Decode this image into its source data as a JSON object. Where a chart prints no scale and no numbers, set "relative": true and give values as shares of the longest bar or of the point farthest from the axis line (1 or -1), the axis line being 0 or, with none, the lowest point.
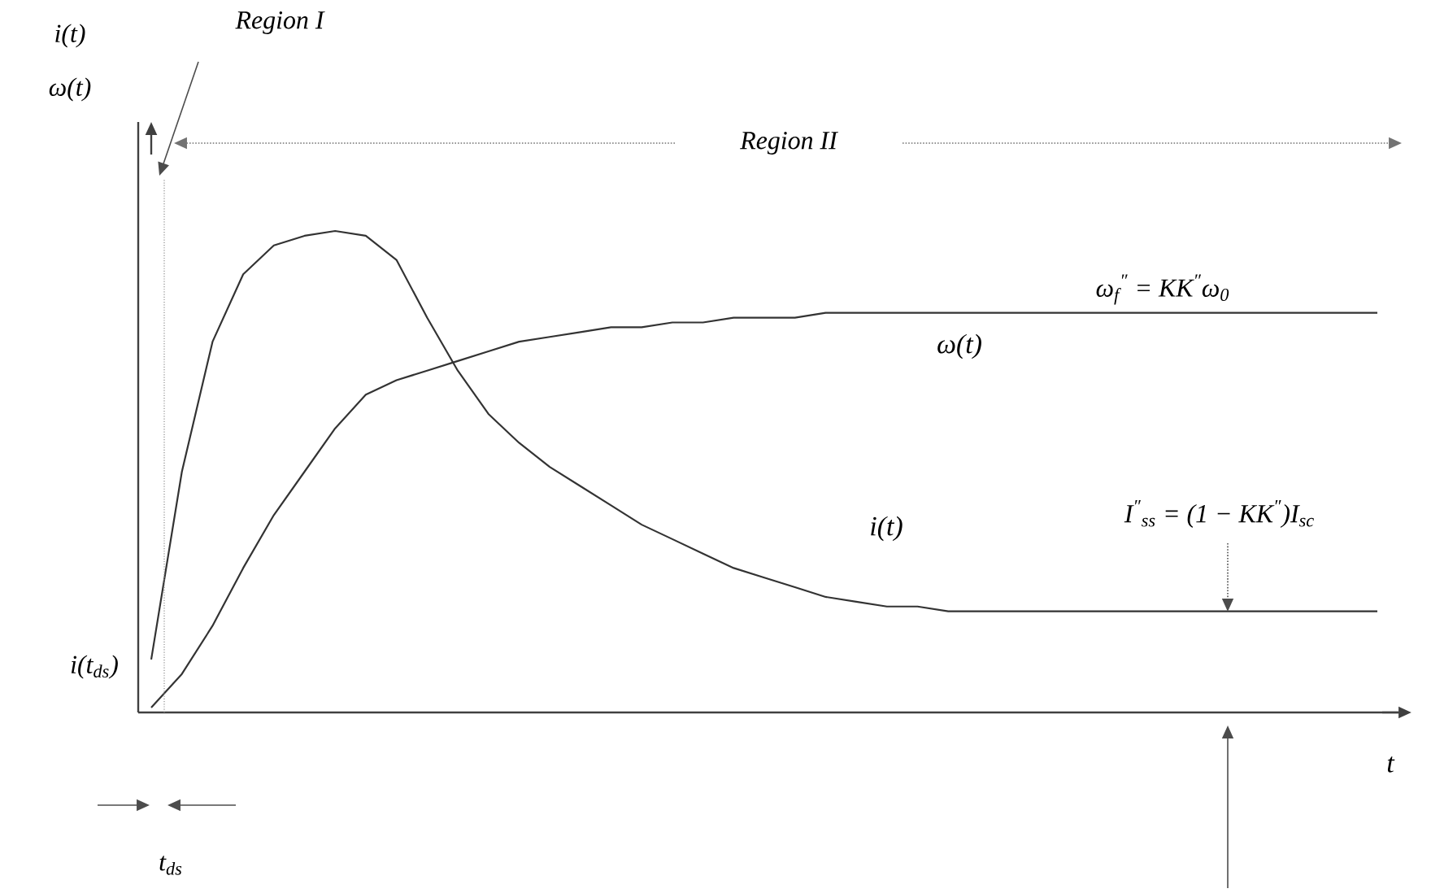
{
  "chart_data": {
    "type": "line",
    "relative": true,
    "xlabel": "t",
    "legend": false,
    "marker": "none",
    "line_style": "solid",
    "categories": [
      null,
      null,
      null,
      null,
      null,
      null,
      null,
      null,
      null,
      null,
      null,
      null,
      null,
      null,
      null,
      null,
      null,
      null,
      null,
      null,
      null,
      null,
      null,
      null,
      null,
      null,
      null,
      null,
      null,
      null,
      null,
      null,
      null,
      null,
      null,
      null,
      null,
      null,
      null,
      null,
      null
    ],
    "series": [
      {
        "name": "i(t)",
        "color": "#333333",
        "values": [
          0.11,
          0.5,
          0.77,
          0.91,
          0.97,
          0.99,
          1.0,
          0.99,
          0.94,
          0.82,
          0.71,
          0.62,
          0.56,
          0.51,
          0.47,
          0.43,
          0.39,
          0.36,
          0.33,
          0.3,
          0.28,
          0.26,
          0.24,
          0.23,
          0.22,
          0.22,
          0.21,
          0.21,
          0.21,
          0.21,
          0.21,
          0.21,
          0.21,
          0.21,
          0.21,
          0.21,
          0.21,
          0.21,
          0.21,
          0.21,
          0.21
        ]
      },
      {
        "name": "ω(t)",
        "color": "#333333",
        "values": [
          0.01,
          0.08,
          0.18,
          0.3,
          0.41,
          0.5,
          0.59,
          0.66,
          0.69,
          0.71,
          0.73,
          0.75,
          0.77,
          0.78,
          0.79,
          0.8,
          0.8,
          0.81,
          0.81,
          0.82,
          0.82,
          0.82,
          0.83,
          0.83,
          0.83,
          0.83,
          0.83,
          0.83,
          0.83,
          0.83,
          0.83,
          0.83,
          0.83,
          0.83,
          0.83,
          0.83,
          0.83,
          0.83,
          0.83,
          0.83,
          0.83
        ]
      }
    ],
    "annotations": [
      "i(t)",
      "Region I",
      "Region II",
      "ω$_{f}$$^{″}$ = KK$^{″}$ω$_{0}$",
      "I$^{″}$$_{ss}$ = (1 − KK$^{″}$)I$_{sc}$",
      "i(t$_{ds}$)",
      "t$_{ds}$",
      "ω(t)"
    ]
  }
}
